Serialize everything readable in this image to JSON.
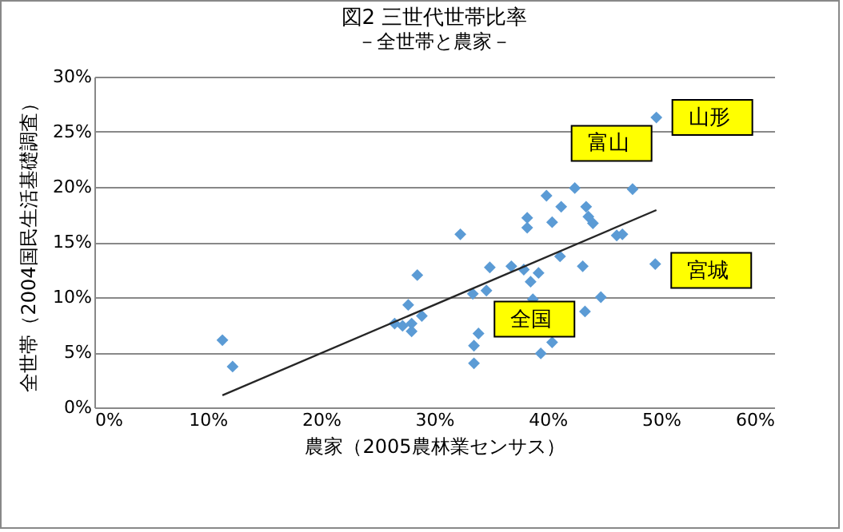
{
  "chart_data": {
    "type": "scatter",
    "title": "図2 三世代世帯比率",
    "subtitle": "－全世帯と農家－",
    "xlabel": "農家（2005農林業センサス）",
    "ylabel": "全世帯（2004国民生活基礎調査）",
    "xlim": [
      0,
      60
    ],
    "xticks": [
      {
        "value": 0,
        "label": "0%"
      },
      {
        "value": 10,
        "label": "10%"
      },
      {
        "value": 20,
        "label": "20%"
      },
      {
        "value": 30,
        "label": "30%"
      },
      {
        "value": 40,
        "label": "40%"
      },
      {
        "value": 50,
        "label": "50%"
      },
      {
        "value": 60,
        "label": "60%"
      }
    ],
    "ylim": [
      0,
      30
    ],
    "yticks": [
      {
        "value": 0,
        "label": "0%"
      },
      {
        "value": 5,
        "label": "5%"
      },
      {
        "value": 10,
        "label": "10%"
      },
      {
        "value": 15,
        "label": "15%"
      },
      {
        "value": 20,
        "label": "20%"
      },
      {
        "value": 25,
        "label": "25%"
      },
      {
        "value": 30,
        "label": "30%"
      }
    ],
    "grid": "y",
    "marker": "diamond",
    "series": [
      {
        "color": "#5b9bd5",
        "x": [
          11.3,
          12.2,
          32.3,
          28.5,
          27.7,
          26.5,
          27.2,
          28.0,
          28.0,
          28.9,
          34.9,
          34.6,
          33.4,
          33.9,
          33.5,
          33.5,
          36.8,
          37.9,
          38.5,
          39.2,
          38.7,
          39.4,
          40.4,
          38.2,
          38.2,
          39.9,
          40.4,
          41.2,
          41.1,
          42.4,
          43.4,
          43.6,
          44.0,
          43.1,
          43.3,
          44.7,
          46.1,
          46.6,
          47.5,
          49.6,
          49.5
        ],
        "values": [
          6.1,
          3.7,
          15.7,
          12.0,
          9.3,
          7.6,
          7.4,
          7.6,
          6.9,
          8.3,
          12.7,
          10.6,
          10.3,
          6.7,
          5.6,
          4.0,
          12.8,
          12.5,
          11.4,
          12.2,
          9.8,
          4.9,
          5.9,
          17.2,
          16.3,
          19.2,
          16.8,
          18.2,
          13.7,
          19.9,
          18.2,
          17.3,
          16.7,
          12.8,
          8.7,
          10.0,
          15.6,
          15.7,
          19.8,
          26.3,
          13.0
        ]
      },
      {
        "type": "line",
        "color": "#262626",
        "line_style": "solid",
        "marker": "none",
        "x": [
          11.3,
          49.6
        ],
        "values": [
          1.1,
          17.9
        ]
      }
    ],
    "annotations": [
      {
        "text": "山形",
        "x": 49.6,
        "y": 26.3
      },
      {
        "text": "富山",
        "x": 42.4,
        "y": 19.9
      },
      {
        "text": "宮城",
        "x": 49.5,
        "y": 13.0
      },
      {
        "text": "全国",
        "x": 33.9,
        "y": 6.7
      }
    ]
  }
}
